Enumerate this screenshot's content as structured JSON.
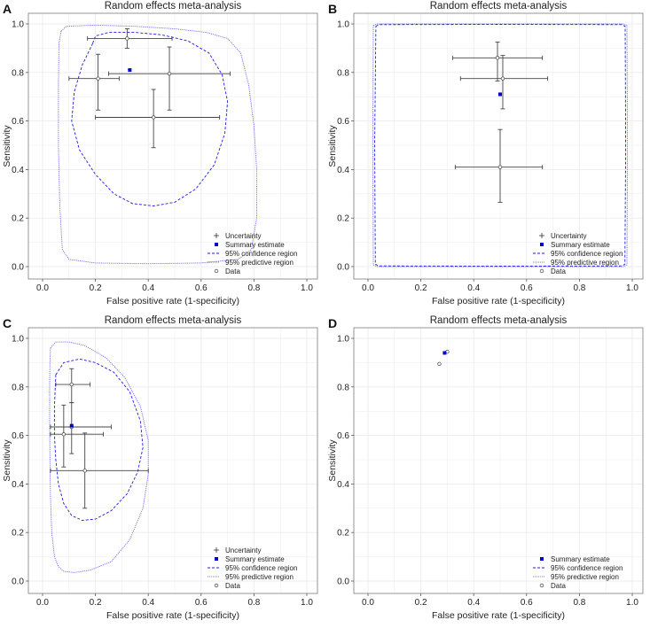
{
  "figure": {
    "panels": [
      {
        "letter": "A",
        "show_uncertainty_legend": true
      },
      {
        "letter": "B",
        "show_uncertainty_legend": true
      },
      {
        "letter": "C",
        "show_uncertainty_legend": true
      },
      {
        "letter": "D",
        "show_uncertainty_legend": false
      }
    ]
  },
  "colors": {
    "confidence": "#1a1aee",
    "predictive": "#6a6af0",
    "summary": "#0000cc",
    "data": "#555555",
    "error_bar": "#444444",
    "grid": "#ececec",
    "frame": "#7a7a7a"
  },
  "chart_data": [
    {
      "type": "scatter",
      "panel": "A",
      "title": "Random effects meta-analysis",
      "xlabel": "False positive rate (1-specificity)",
      "ylabel": "Sensitivity",
      "xlim": [
        0,
        1
      ],
      "ylim": [
        0,
        1
      ],
      "xticks": [
        "0.0",
        "0.2",
        "0.4",
        "0.6",
        "0.8",
        "1.0"
      ],
      "yticks": [
        "0.0",
        "0.2",
        "0.4",
        "0.6",
        "0.8",
        "1.0"
      ],
      "legend": [
        "Uncertainty",
        "Summary estimate",
        "95% confidence region",
        "95% predictive region",
        "Data"
      ],
      "data": [
        {
          "fpr": 0.32,
          "sens": 0.94,
          "x_ci": [
            0.17,
            0.49
          ],
          "y_ci": [
            0.9,
            0.98
          ]
        },
        {
          "fpr": 0.21,
          "sens": 0.775,
          "x_ci": [
            0.1,
            0.29
          ],
          "y_ci": [
            0.645,
            0.875
          ]
        },
        {
          "fpr": 0.48,
          "sens": 0.795,
          "x_ci": [
            0.25,
            0.71
          ],
          "y_ci": [
            0.645,
            0.905
          ]
        },
        {
          "fpr": 0.42,
          "sens": 0.615,
          "x_ci": [
            0.2,
            0.67
          ],
          "y_ci": [
            0.49,
            0.73
          ]
        }
      ],
      "summary": {
        "fpr": 0.33,
        "sens": 0.81
      },
      "confidence_region": [
        [
          0.19,
          0.92
        ],
        [
          0.2,
          0.95
        ],
        [
          0.25,
          0.965
        ],
        [
          0.35,
          0.965
        ],
        [
          0.45,
          0.955
        ],
        [
          0.55,
          0.93
        ],
        [
          0.63,
          0.88
        ],
        [
          0.68,
          0.79
        ],
        [
          0.7,
          0.68
        ],
        [
          0.69,
          0.55
        ],
        [
          0.65,
          0.42
        ],
        [
          0.58,
          0.32
        ],
        [
          0.5,
          0.265
        ],
        [
          0.42,
          0.25
        ],
        [
          0.34,
          0.26
        ],
        [
          0.27,
          0.3
        ],
        [
          0.2,
          0.38
        ],
        [
          0.14,
          0.48
        ],
        [
          0.11,
          0.6
        ],
        [
          0.12,
          0.72
        ],
        [
          0.15,
          0.83
        ]
      ],
      "predictive_region": [
        [
          0.07,
          0.97
        ],
        [
          0.09,
          0.99
        ],
        [
          0.2,
          0.995
        ],
        [
          0.35,
          0.99
        ],
        [
          0.5,
          0.98
        ],
        [
          0.62,
          0.965
        ],
        [
          0.7,
          0.94
        ],
        [
          0.75,
          0.88
        ],
        [
          0.78,
          0.75
        ],
        [
          0.8,
          0.58
        ],
        [
          0.81,
          0.4
        ],
        [
          0.81,
          0.2
        ],
        [
          0.79,
          0.07
        ],
        [
          0.74,
          0.03
        ],
        [
          0.6,
          0.015
        ],
        [
          0.4,
          0.012
        ],
        [
          0.2,
          0.015
        ],
        [
          0.1,
          0.03
        ],
        [
          0.075,
          0.07
        ],
        [
          0.065,
          0.25
        ],
        [
          0.06,
          0.5
        ],
        [
          0.06,
          0.75
        ],
        [
          0.062,
          0.92
        ]
      ]
    },
    {
      "type": "scatter",
      "panel": "B",
      "title": "Random effects meta-analysis",
      "xlabel": "False positive rate (1-specificity)",
      "ylabel": "Sensitivity",
      "xlim": [
        0,
        1
      ],
      "ylim": [
        0,
        1
      ],
      "xticks": [
        "0.0",
        "0.2",
        "0.4",
        "0.6",
        "0.8",
        "1.0"
      ],
      "yticks": [
        "0.0",
        "0.2",
        "0.4",
        "0.6",
        "0.8",
        "1.0"
      ],
      "legend": [
        "Uncertainty",
        "Summary estimate",
        "95% confidence region",
        "95% predictive region",
        "Data"
      ],
      "data": [
        {
          "fpr": 0.49,
          "sens": 0.86,
          "x_ci": [
            0.32,
            0.66
          ],
          "y_ci": [
            0.765,
            0.925
          ]
        },
        {
          "fpr": 0.51,
          "sens": 0.775,
          "x_ci": [
            0.35,
            0.68
          ],
          "y_ci": [
            0.65,
            0.87
          ]
        },
        {
          "fpr": 0.5,
          "sens": 0.41,
          "x_ci": [
            0.33,
            0.66
          ],
          "y_ci": [
            0.265,
            0.565
          ]
        }
      ],
      "summary": {
        "fpr": 0.5,
        "sens": 0.71
      },
      "confidence_region": [
        [
          0.03,
          0.99
        ],
        [
          0.04,
          0.997
        ],
        [
          0.5,
          0.998
        ],
        [
          0.96,
          0.997
        ],
        [
          0.973,
          0.99
        ],
        [
          0.975,
          0.5
        ],
        [
          0.972,
          0.01
        ],
        [
          0.96,
          0.003
        ],
        [
          0.5,
          0.002
        ],
        [
          0.04,
          0.003
        ],
        [
          0.028,
          0.01
        ],
        [
          0.025,
          0.5
        ]
      ],
      "predictive_region": [
        [
          0.02,
          0.993
        ],
        [
          0.035,
          1.0
        ],
        [
          0.5,
          1.0
        ],
        [
          0.965,
          1.0
        ],
        [
          0.98,
          0.993
        ],
        [
          0.982,
          0.5
        ],
        [
          0.98,
          0.007
        ],
        [
          0.965,
          0.0
        ],
        [
          0.5,
          0.0
        ],
        [
          0.035,
          0.0
        ],
        [
          0.02,
          0.007
        ],
        [
          0.018,
          0.5
        ]
      ]
    },
    {
      "type": "scatter",
      "panel": "C",
      "title": "Random effects meta-analysis",
      "xlabel": "False positive rate (1-specificity)",
      "ylabel": "Sensitivity",
      "xlim": [
        0,
        1
      ],
      "ylim": [
        0,
        1
      ],
      "xticks": [
        "0.0",
        "0.2",
        "0.4",
        "0.6",
        "0.8",
        "1.0"
      ],
      "yticks": [
        "0.0",
        "0.2",
        "0.4",
        "0.6",
        "0.8",
        "1.0"
      ],
      "legend": [
        "Uncertainty",
        "Summary estimate",
        "95% confidence region",
        "95% predictive region",
        "Data"
      ],
      "data": [
        {
          "fpr": 0.11,
          "sens": 0.81,
          "x_ci": [
            0.05,
            0.18
          ],
          "y_ci": [
            0.735,
            0.875
          ]
        },
        {
          "fpr": 0.11,
          "sens": 0.635,
          "x_ci": [
            0.03,
            0.26
          ],
          "y_ci": [
            0.525,
            0.735
          ]
        },
        {
          "fpr": 0.08,
          "sens": 0.605,
          "x_ci": [
            0.03,
            0.23
          ],
          "y_ci": [
            0.47,
            0.725
          ]
        },
        {
          "fpr": 0.16,
          "sens": 0.455,
          "x_ci": [
            0.03,
            0.4
          ],
          "y_ci": [
            0.3,
            0.61
          ]
        }
      ],
      "summary": {
        "fpr": 0.11,
        "sens": 0.64
      },
      "confidence_region": [
        [
          0.05,
          0.85
        ],
        [
          0.08,
          0.9
        ],
        [
          0.14,
          0.915
        ],
        [
          0.2,
          0.9
        ],
        [
          0.27,
          0.86
        ],
        [
          0.33,
          0.78
        ],
        [
          0.37,
          0.66
        ],
        [
          0.38,
          0.55
        ],
        [
          0.36,
          0.45
        ],
        [
          0.32,
          0.36
        ],
        [
          0.26,
          0.29
        ],
        [
          0.2,
          0.255
        ],
        [
          0.15,
          0.25
        ],
        [
          0.11,
          0.27
        ],
        [
          0.08,
          0.32
        ],
        [
          0.06,
          0.4
        ],
        [
          0.05,
          0.5
        ],
        [
          0.045,
          0.6
        ],
        [
          0.045,
          0.72
        ]
      ],
      "predictive_region": [
        [
          0.03,
          0.96
        ],
        [
          0.05,
          0.985
        ],
        [
          0.1,
          0.985
        ],
        [
          0.16,
          0.97
        ],
        [
          0.24,
          0.92
        ],
        [
          0.31,
          0.84
        ],
        [
          0.37,
          0.72
        ],
        [
          0.4,
          0.58
        ],
        [
          0.4,
          0.44
        ],
        [
          0.38,
          0.3
        ],
        [
          0.33,
          0.17
        ],
        [
          0.26,
          0.08
        ],
        [
          0.18,
          0.045
        ],
        [
          0.12,
          0.035
        ],
        [
          0.08,
          0.04
        ],
        [
          0.06,
          0.06
        ],
        [
          0.045,
          0.1
        ],
        [
          0.035,
          0.2
        ],
        [
          0.03,
          0.35
        ],
        [
          0.028,
          0.5
        ],
        [
          0.027,
          0.65
        ],
        [
          0.027,
          0.8
        ],
        [
          0.028,
          0.9
        ]
      ]
    },
    {
      "type": "scatter",
      "panel": "D",
      "title": "Random effects meta-analysis",
      "xlabel": "False positive rate (1-specificity)",
      "ylabel": "Sensitivity",
      "xlim": [
        0,
        1
      ],
      "ylim": [
        0,
        1
      ],
      "xticks": [
        "0.0",
        "0.2",
        "0.4",
        "0.6",
        "0.8",
        "1.0"
      ],
      "yticks": [
        "0.0",
        "0.2",
        "0.4",
        "0.6",
        "0.8",
        "1.0"
      ],
      "legend": [
        "Summary estimate",
        "95% confidence region",
        "95% predictive region",
        "Data"
      ],
      "data": [
        {
          "fpr": 0.3,
          "sens": 0.945
        },
        {
          "fpr": 0.27,
          "sens": 0.895
        }
      ],
      "summary": {
        "fpr": 0.29,
        "sens": 0.94
      },
      "confidence_region": [],
      "predictive_region": []
    }
  ]
}
